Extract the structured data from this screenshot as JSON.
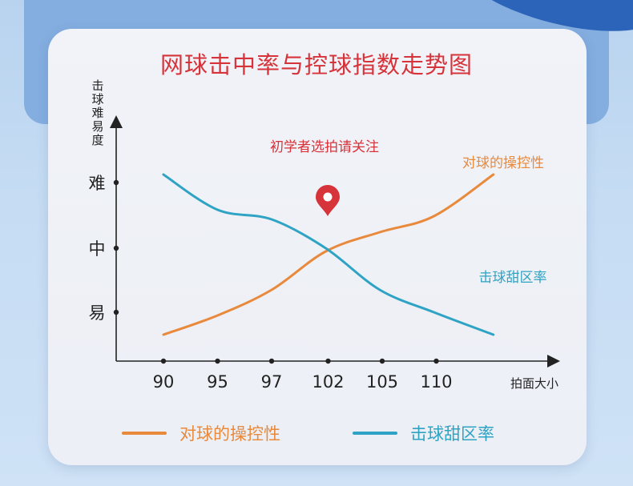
{
  "chart_data": {
    "type": "line",
    "title": "网球击中率与控球指数走势图",
    "xlabel": "拍面大小",
    "ylabel": "击球难易度",
    "categories": [
      "90",
      "95",
      "97",
      "102",
      "105",
      "110"
    ],
    "y_categories": [
      "易",
      "中",
      "难"
    ],
    "ylim": [
      0,
      3
    ],
    "annotation": "初学者选拍请关注",
    "series": [
      {
        "name": "对球的操控性",
        "color": "#e8893c",
        "x": [
          0,
          1,
          2,
          3,
          4,
          5,
          6.1
        ],
        "y": [
          0.15,
          0.45,
          0.85,
          1.45,
          1.75,
          2.0,
          2.65
        ]
      },
      {
        "name": "击球甜区率",
        "color": "#2fa3c4",
        "x": [
          0,
          1,
          2,
          3,
          4,
          5,
          6.1
        ],
        "y": [
          2.65,
          2.1,
          1.95,
          1.5,
          0.85,
          0.5,
          0.15
        ]
      }
    ],
    "legend_position": "bottom",
    "grid": false,
    "marker_color": "#d6333a"
  }
}
